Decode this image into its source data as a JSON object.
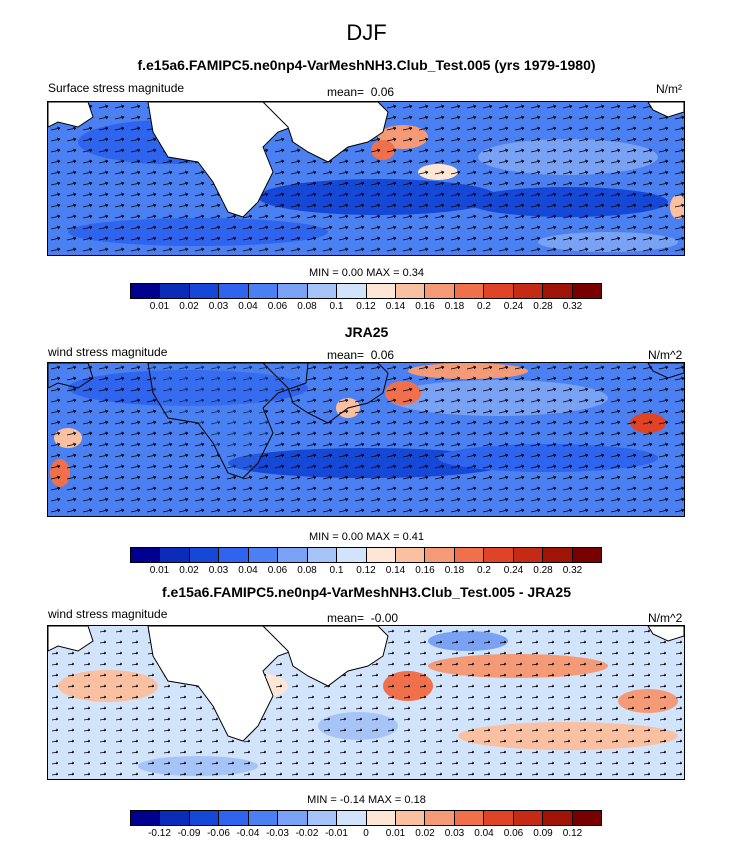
{
  "title": "DJF",
  "colormap": [
    "#000090",
    "#0a2cb8",
    "#1648d8",
    "#2e64ee",
    "#4a80f2",
    "#7aa2f4",
    "#a6c4f8",
    "#d2e4fc",
    "#fde6d6",
    "#f9c0a2",
    "#f59a76",
    "#f0704c",
    "#e04426",
    "#c42a14",
    "#a01408",
    "#780000"
  ],
  "panels": [
    {
      "id": "model",
      "title": "f.e15a6.FAMIPC5.ne0np4-VarMeshNH3.Club_Test.005 (yrs 1979-1980)",
      "left_label": "Surface stress magnitude",
      "mean_label": "mean=",
      "mean_value": "0.06",
      "units": "N/m²",
      "min_label": "MIN =",
      "min_value": "0.00",
      "max_label": "MAX =",
      "max_value": "0.34",
      "colorbar_ticks": [
        "0.01",
        "0.02",
        "0.03",
        "0.04",
        "0.06",
        "0.08",
        "0.1",
        "0.12",
        "0.14",
        "0.16",
        "0.18",
        "0.2",
        "0.24",
        "0.28",
        "0.32"
      ]
    },
    {
      "id": "obs",
      "title": "JRA25",
      "left_label": "wind stress magnitude",
      "mean_label": "mean=",
      "mean_value": "0.06",
      "units": "N/m^2",
      "min_label": "MIN =",
      "min_value": "0.00",
      "max_label": "MAX =",
      "max_value": "0.41",
      "colorbar_ticks": [
        "0.01",
        "0.02",
        "0.03",
        "0.04",
        "0.06",
        "0.08",
        "0.1",
        "0.12",
        "0.14",
        "0.16",
        "0.18",
        "0.2",
        "0.24",
        "0.28",
        "0.32"
      ]
    },
    {
      "id": "diff",
      "title": "f.e15a6.FAMIPC5.ne0np4-VarMeshNH3.Club_Test.005 - JRA25",
      "left_label": "wind stress magnitude",
      "mean_label": "mean=",
      "mean_value": "-0.00",
      "units": "N/m^2",
      "min_label": "MIN =",
      "min_value": "-0.14",
      "max_label": "MAX =",
      "max_value": "0.18",
      "colorbar_ticks": [
        "-0.12",
        "-0.09",
        "-0.06",
        "-0.04",
        "-0.03",
        "-0.02",
        "-0.01",
        "0",
        "0.01",
        "0.02",
        "0.03",
        "0.04",
        "0.06",
        "0.09",
        "0.12"
      ]
    }
  ],
  "chart_data": [
    {
      "type": "heatmap",
      "title": "f.e15a6.FAMIPC5.ne0np4-VarMeshNH3.Club_Test.005 (yrs 1979-1980)",
      "variable": "Surface stress magnitude",
      "units": "N/m²",
      "mean": 0.06,
      "min": 0.0,
      "max": 0.34,
      "contour_levels": [
        0.01,
        0.02,
        0.03,
        0.04,
        0.06,
        0.08,
        0.1,
        0.12,
        0.14,
        0.16,
        0.18,
        0.2,
        0.24,
        0.28,
        0.32
      ],
      "overlay": "wind stress vectors"
    },
    {
      "type": "heatmap",
      "title": "JRA25",
      "variable": "wind stress magnitude",
      "units": "N/m^2",
      "mean": 0.06,
      "min": 0.0,
      "max": 0.41,
      "contour_levels": [
        0.01,
        0.02,
        0.03,
        0.04,
        0.06,
        0.08,
        0.1,
        0.12,
        0.14,
        0.16,
        0.18,
        0.2,
        0.24,
        0.28,
        0.32
      ],
      "overlay": "wind stress vectors"
    },
    {
      "type": "heatmap",
      "title": "f.e15a6.FAMIPC5.ne0np4-VarMeshNH3.Club_Test.005 - JRA25",
      "variable": "wind stress magnitude",
      "units": "N/m^2",
      "mean": -0.0,
      "min": -0.14,
      "max": 0.18,
      "contour_levels": [
        -0.12,
        -0.09,
        -0.06,
        -0.04,
        -0.03,
        -0.02,
        -0.01,
        0,
        0.01,
        0.02,
        0.03,
        0.04,
        0.06,
        0.09,
        0.12
      ],
      "overlay": "wind stress difference vectors"
    }
  ]
}
